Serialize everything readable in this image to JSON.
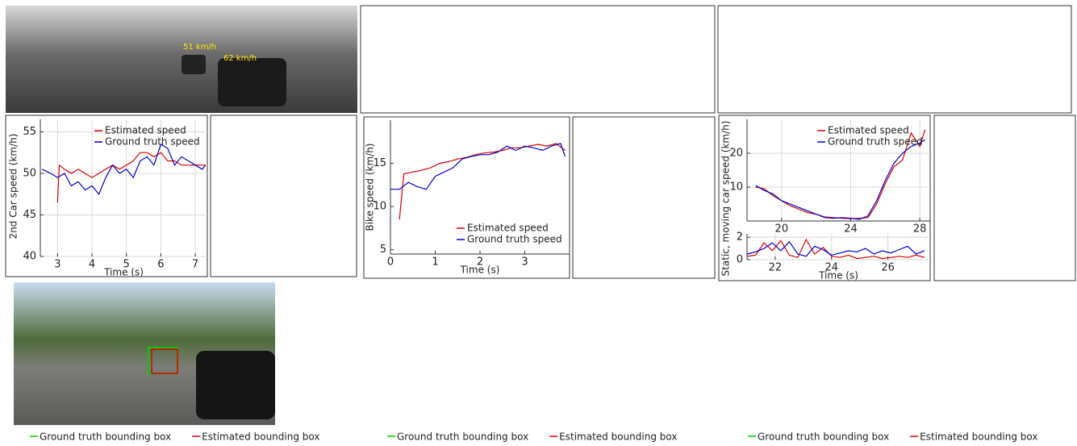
{
  "chart_data": [
    {
      "type": "line",
      "xlabel": "Time (s)",
      "ylabel": "2nd Car speed (km/h)",
      "legend": "upper right",
      "grid": true,
      "xlim": [
        2.5,
        7.35
      ],
      "xticks": [
        3,
        4,
        5,
        6,
        7
      ],
      "ylim": [
        40,
        56.5
      ],
      "yticks": [
        40,
        45,
        50,
        55
      ],
      "series": [
        {
          "name": "Estimated speed",
          "color": "#e00000",
          "x": [
            3,
            3.05,
            3.2,
            3.4,
            3.6,
            3.8,
            4,
            4.2,
            4.4,
            4.6,
            4.8,
            5,
            5.2,
            5.4,
            5.6,
            5.8,
            6,
            6.2,
            6.4,
            6.6,
            6.8,
            7,
            7.3
          ],
          "values": [
            46.5,
            51,
            50.5,
            50,
            50.5,
            50,
            49.5,
            50,
            50.5,
            51,
            50.5,
            51,
            51.5,
            52.5,
            52.5,
            52,
            52.5,
            51.5,
            51.5,
            51,
            51,
            51,
            51
          ]
        },
        {
          "name": "Ground truth speed",
          "color": "#0000d0",
          "x": [
            2.55,
            2.8,
            3,
            3.2,
            3.4,
            3.6,
            3.8,
            4,
            4.2,
            4.4,
            4.6,
            4.8,
            5,
            5.2,
            5.4,
            5.6,
            5.8,
            6,
            6.2,
            6.4,
            6.6,
            6.8,
            7,
            7.2,
            7.3
          ],
          "values": [
            50.5,
            50,
            49.5,
            50,
            48.5,
            49,
            48,
            48.5,
            47.5,
            49.5,
            51,
            50,
            50.5,
            49.5,
            51.5,
            52,
            51,
            53.5,
            53,
            51,
            52,
            51.5,
            51,
            50.5,
            51
          ]
        }
      ]
    },
    {
      "type": "line",
      "xlabel": "Time (s)",
      "ylabel": "Bike speed (km/h)",
      "legend": "lower right",
      "grid": false,
      "xlim": [
        0,
        4
      ],
      "xticks": [
        0,
        1,
        2,
        3
      ],
      "ylim": [
        4.5,
        20
      ],
      "yticks": [
        5,
        10,
        15
      ],
      "series": [
        {
          "name": "Estimated speed",
          "color": "#e00000",
          "x": [
            0.2,
            0.3,
            0.5,
            0.7,
            0.9,
            1.1,
            1.3,
            1.5,
            1.7,
            1.9,
            2.1,
            2.3,
            2.5,
            2.7,
            2.9,
            3.1,
            3.3,
            3.5,
            3.7,
            3.9
          ],
          "values": [
            8.5,
            13.8,
            14,
            14.2,
            14.5,
            15,
            15.2,
            15.5,
            15.7,
            16,
            16.2,
            16.3,
            16.5,
            16.8,
            16.8,
            17,
            17.2,
            17,
            17.3,
            16.5
          ]
        },
        {
          "name": "Ground truth speed",
          "color": "#0000d0",
          "x": [
            0,
            0.2,
            0.4,
            0.6,
            0.8,
            1,
            1.2,
            1.4,
            1.6,
            1.8,
            2,
            2.2,
            2.4,
            2.6,
            2.8,
            3,
            3.2,
            3.4,
            3.6,
            3.8,
            3.9
          ],
          "values": [
            12,
            12,
            12.8,
            12.3,
            12,
            13.5,
            14,
            14.5,
            15.5,
            15.8,
            16,
            16,
            16.3,
            17,
            16.5,
            17,
            16.8,
            16.5,
            17,
            17.3,
            15.8
          ]
        }
      ]
    },
    {
      "type": "line",
      "ylabel": "Static, moving car speed (km/h)",
      "legend": "upper right",
      "grid": true,
      "xlim": [
        18,
        28.6
      ],
      "xticks": [
        20,
        24,
        28
      ],
      "ylim": [
        0,
        30
      ],
      "yticks": [
        10,
        20
      ],
      "series": [
        {
          "name": "Estimated speed",
          "color": "#e00000",
          "x": [
            18.5,
            19,
            19.5,
            20,
            20.5,
            21,
            21.5,
            22,
            22.5,
            23,
            23.5,
            24,
            24.5,
            25,
            25.5,
            26,
            26.5,
            27,
            27.5,
            28,
            28.3
          ],
          "values": [
            10,
            9.5,
            7.5,
            6,
            4.5,
            3.5,
            2.5,
            2,
            1.2,
            1,
            0.8,
            0.7,
            0.8,
            1,
            5,
            11,
            16,
            18,
            26,
            22,
            27
          ]
        },
        {
          "name": "Ground truth speed",
          "color": "#0000d0",
          "x": [
            18.5,
            19,
            19.5,
            20,
            20.5,
            21,
            21.5,
            22,
            22.5,
            23,
            23.5,
            24,
            24.5,
            25,
            25.5,
            26,
            26.5,
            27,
            27.5,
            28,
            28.3
          ],
          "values": [
            10.5,
            9,
            8,
            6,
            5,
            4,
            3,
            2,
            1,
            0.8,
            1,
            0.8,
            0.5,
            1.5,
            6,
            12,
            17,
            20,
            22,
            23,
            24
          ]
        }
      ]
    },
    {
      "type": "line",
      "xlabel": "Time (s)",
      "grid": true,
      "xlim": [
        21,
        27.5
      ],
      "xticks": [
        22,
        24,
        26
      ],
      "ylim": [
        0,
        2.3
      ],
      "yticks": [
        0,
        2
      ],
      "series": [
        {
          "color": "#e00000",
          "x": [
            21,
            21.3,
            21.6,
            21.9,
            22.2,
            22.5,
            22.8,
            23.1,
            23.4,
            23.7,
            24,
            24.3,
            24.6,
            24.9,
            25.2,
            25.5,
            25.8,
            26.1,
            26.4,
            26.7,
            27,
            27.3
          ],
          "values": [
            0.3,
            0.4,
            1.5,
            0.8,
            1.7,
            0.4,
            0.2,
            1.8,
            0.5,
            1.1,
            0.3,
            0.2,
            0.4,
            0.1,
            0.2,
            0.3,
            0.1,
            0.2,
            0.3,
            0.2,
            0.4,
            0.2
          ]
        },
        {
          "color": "#0000d0",
          "x": [
            21,
            21.3,
            21.6,
            21.9,
            22.2,
            22.5,
            22.8,
            23.1,
            23.4,
            23.7,
            24,
            24.3,
            24.6,
            24.9,
            25.2,
            25.5,
            25.8,
            26.1,
            26.4,
            26.7,
            27,
            27.3
          ],
          "values": [
            0.5,
            0.7,
            1,
            1.5,
            0.8,
            1.6,
            0.5,
            0.3,
            1.2,
            0.9,
            0.4,
            0.6,
            0.8,
            0.7,
            1,
            0.5,
            0.8,
            0.6,
            0.9,
            1.2,
            0.5,
            0.8
          ]
        }
      ]
    }
  ],
  "image_annotations": [
    "51 km/h",
    "62 km/h"
  ],
  "box_legends": [
    [
      {
        "name": "Ground truth bounding box",
        "color": "#00cc00"
      },
      {
        "name": "Estimated bounding box",
        "color": "#e00000"
      }
    ],
    [
      {
        "name": "Ground truth bounding box",
        "color": "#00cc00"
      },
      {
        "name": "Estimated bounding box",
        "color": "#e00000"
      }
    ],
    [
      {
        "name": "Ground truth bounding box",
        "color": "#00cc00"
      },
      {
        "name": "Estimated bounding box",
        "color": "#e00000"
      }
    ]
  ]
}
